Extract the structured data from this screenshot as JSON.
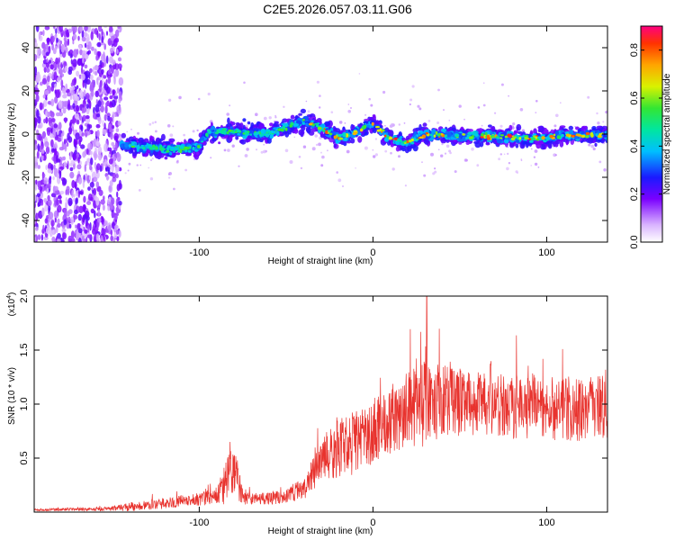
{
  "title": "C2E5.2026.057.03.11.G06",
  "chart_data": [
    {
      "type": "heatmap",
      "name": "spectrogram",
      "xlabel": "Height of straight line (km)",
      "ylabel": "Frequency (Hz)",
      "xlim": [
        -195,
        135
      ],
      "ylim": [
        -50,
        50
      ],
      "xticks": [
        -100,
        0,
        100
      ],
      "xtick_labels": [
        "-100",
        "0",
        "100"
      ],
      "yticks": [
        -40,
        -20,
        0,
        20,
        40
      ],
      "ytick_labels": [
        "-40",
        "-20",
        "0",
        "20",
        "40"
      ],
      "colorbar": {
        "label": "Normalized spectral amplitude",
        "range": [
          0,
          0.9
        ],
        "ticks": [
          0.0,
          0.2,
          0.4,
          0.6,
          0.8
        ],
        "tick_labels": [
          "0.0",
          "0.2",
          "0.4",
          "0.6",
          "0.8"
        ]
      },
      "band_center": {
        "x": [
          -145,
          -130,
          -115,
          -100,
          -95,
          -80,
          -60,
          -40,
          -30,
          -20,
          -10,
          0,
          10,
          20,
          30,
          50,
          70,
          90,
          110,
          135
        ],
        "y": [
          -5,
          -6,
          -7,
          -6,
          1,
          1,
          0,
          6,
          3,
          -2,
          1,
          5,
          -2,
          -4,
          0,
          -1,
          -1,
          -2,
          -1,
          0
        ]
      },
      "noise_region_x": [
        -195,
        -145
      ]
    },
    {
      "type": "line",
      "name": "snr",
      "xlabel": "Height of straight line (km)",
      "ylabel": "SNR (10 * v/v)",
      "multiplier_label": "(x10",
      "multiplier_exponent": "4",
      "multiplier_close": ")",
      "xlim": [
        -195,
        135
      ],
      "ylim": [
        0,
        2.0
      ],
      "xticks": [
        -100,
        0,
        100
      ],
      "xtick_labels": [
        "-100",
        "0",
        "100"
      ],
      "yticks": [
        0.5,
        1.0,
        1.5,
        2.0
      ],
      "ytick_labels": [
        "0.5",
        "1.0",
        "1.5",
        "2.0"
      ],
      "color": "#e8332e",
      "envelope": {
        "x": [
          -195,
          -150,
          -140,
          -120,
          -100,
          -90,
          -85,
          -82,
          -78,
          -75,
          -70,
          -60,
          -50,
          -45,
          -40,
          -35,
          -30,
          -25,
          -20,
          -10,
          0,
          10,
          20,
          30,
          40,
          60,
          80,
          100,
          120,
          135
        ],
        "mean": [
          0.02,
          0.03,
          0.05,
          0.08,
          0.12,
          0.15,
          0.25,
          0.35,
          0.3,
          0.15,
          0.12,
          0.13,
          0.14,
          0.2,
          0.18,
          0.35,
          0.45,
          0.55,
          0.6,
          0.65,
          0.75,
          0.85,
          0.95,
          1.0,
          1.05,
          1.0,
          0.98,
          0.97,
          0.95,
          0.97
        ],
        "spread": [
          0.01,
          0.02,
          0.04,
          0.05,
          0.06,
          0.08,
          0.2,
          0.25,
          0.2,
          0.08,
          0.05,
          0.06,
          0.06,
          0.1,
          0.1,
          0.15,
          0.2,
          0.25,
          0.3,
          0.3,
          0.3,
          0.32,
          0.35,
          0.4,
          0.35,
          0.3,
          0.3,
          0.3,
          0.3,
          0.3
        ]
      },
      "peak": {
        "x": 31,
        "y": 2.0
      }
    }
  ]
}
